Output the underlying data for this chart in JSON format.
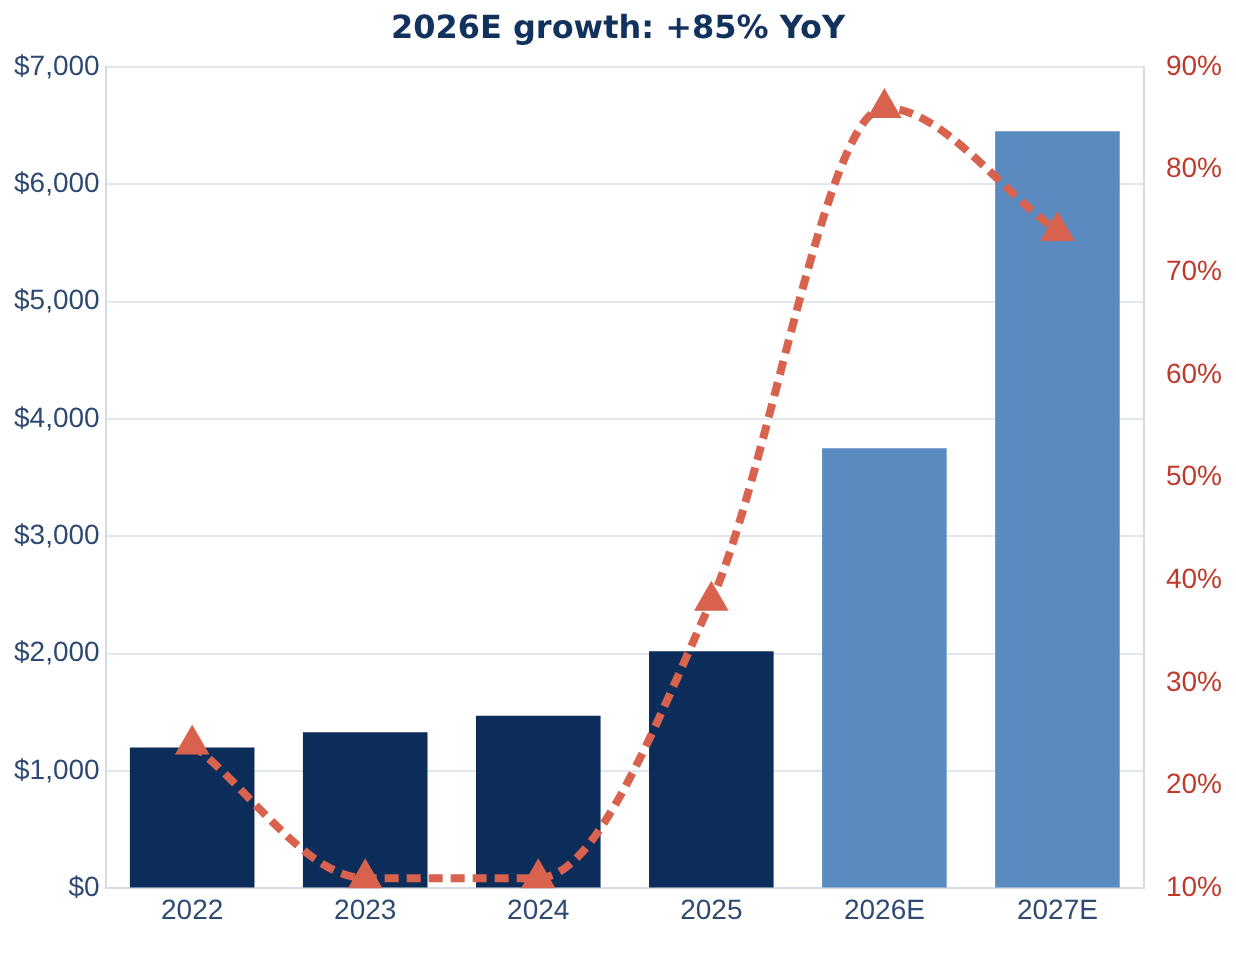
{
  "chart_data": {
    "type": "bar",
    "title": "2026E growth: +85% YoY",
    "categories": [
      "2022",
      "2023",
      "2024",
      "2025",
      "2026E",
      "2027E"
    ],
    "series": [
      {
        "colors": [
          "#0c2d5a",
          "#0c2d5a",
          "#0c2d5a",
          "#0c2d5a",
          "#5b8ac0",
          "#5b8ac0"
        ],
        "values": [
          1200,
          1330,
          1470,
          2020,
          3750,
          6450
        ]
      },
      {
        "type": "line",
        "axis": "y2",
        "color": "#d9624e",
        "marker": "triangle",
        "line_style": "dashed",
        "values": [
          24,
          11,
          11,
          38,
          86,
          74
        ]
      }
    ],
    "ylim": [
      0,
      7000
    ],
    "yticks": [
      {
        "value": 0,
        "label": "$0"
      },
      {
        "value": 1000,
        "label": "$1,000"
      },
      {
        "value": 2000,
        "label": "$2,000"
      },
      {
        "value": 3000,
        "label": "$3,000"
      },
      {
        "value": 4000,
        "label": "$4,000"
      },
      {
        "value": 5000,
        "label": "$5,000"
      },
      {
        "value": 6000,
        "label": "$6,000"
      },
      {
        "value": 7000,
        "label": "$7,000"
      }
    ],
    "y2lim": [
      10,
      90
    ],
    "y2ticks": [
      {
        "value": 10,
        "label": "10%"
      },
      {
        "value": 20,
        "label": "20%"
      },
      {
        "value": 30,
        "label": "30%"
      },
      {
        "value": 40,
        "label": "40%"
      },
      {
        "value": 50,
        "label": "50%"
      },
      {
        "value": 60,
        "label": "60%"
      },
      {
        "value": 70,
        "label": "70%"
      },
      {
        "value": 80,
        "label": "80%"
      },
      {
        "value": 90,
        "label": "90%"
      }
    ],
    "grid": "y",
    "legend": false
  }
}
